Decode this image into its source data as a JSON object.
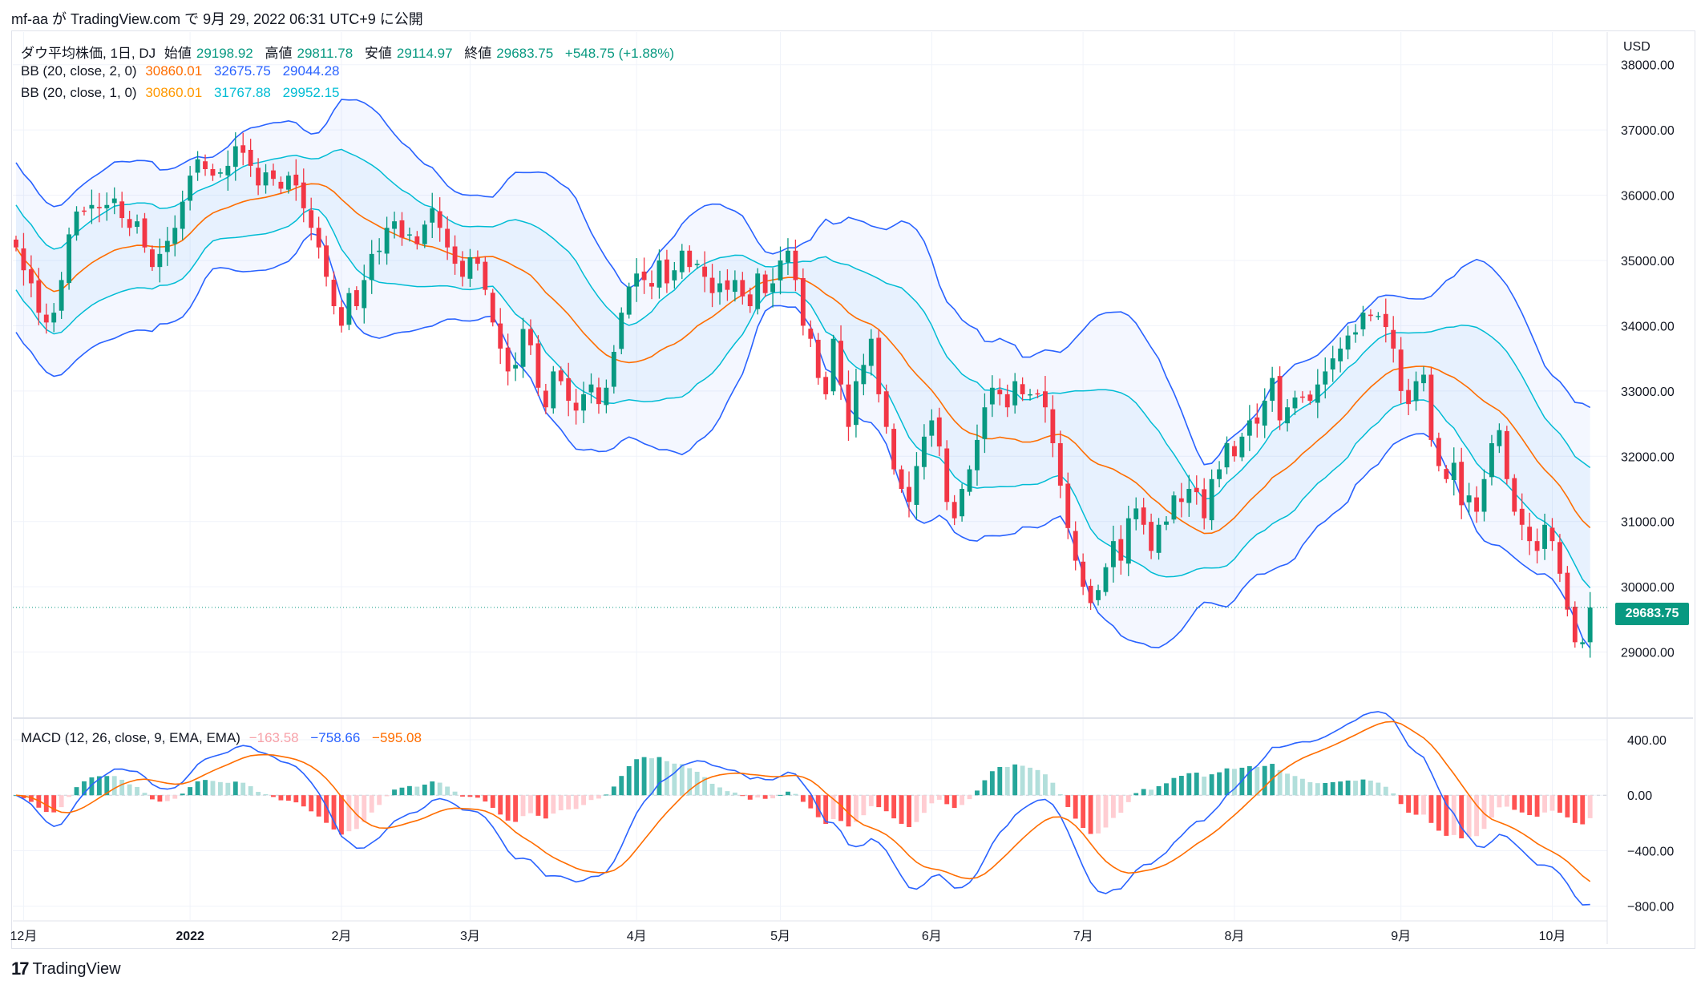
{
  "header": {
    "publish_line": "mf-aa が TradingView.com で 9月 29, 2022 06:31 UTC+9 に公開"
  },
  "legend": {
    "symbol": "ダウ平均株価, 1日, DJ",
    "open_label": "始値",
    "open": "29198.92",
    "high_label": "高値",
    "high": "29811.78",
    "low_label": "安値",
    "low": "29114.97",
    "close_label": "終値",
    "close": "29683.75",
    "change": "+548.75 (+1.88%)",
    "bb1_label": "BB (20, close, 2, 0)",
    "bb1_basis": "30860.01",
    "bb1_upper": "32675.75",
    "bb1_lower": "29044.28",
    "bb2_label": "BB (20, close, 1, 0)",
    "bb2_basis": "30860.01",
    "bb2_upper": "31767.88",
    "bb2_lower": "29952.15",
    "macd_label": "MACD (12, 26, close, 9, EMA, EMA)",
    "macd_hist": "−163.58",
    "macd_line": "−758.66",
    "macd_signal": "−595.08"
  },
  "currency": "USD",
  "last_price_tag": "29683.75",
  "brand": "TradingView",
  "colors": {
    "up": "#089981",
    "down": "#f23645",
    "bb_outer": "#2962ff",
    "bb_inner": "#00bcd4",
    "bb_basis": "#ff6d00",
    "hist_up_strong": "#26a69a",
    "hist_up_weak": "#b2dfdb",
    "hist_down_strong": "#ff5252",
    "hist_down_weak": "#ffcdd2",
    "macd_line": "#2962ff",
    "signal_line": "#ff6d00"
  },
  "chart_data": [
    {
      "type": "candlestick",
      "title": "ダウ平均株価, 1日, DJ",
      "y_unit": "USD",
      "ylim": [
        28000,
        38500
      ],
      "yticks": [
        29000,
        30000,
        31000,
        32000,
        33000,
        34000,
        35000,
        36000,
        37000,
        38000
      ],
      "ytick_labels": [
        "29000.00",
        "30000.00",
        "31000.00",
        "32000.00",
        "33000.00",
        "34000.00",
        "35000.00",
        "36000.00",
        "37000.00",
        "38000.00"
      ],
      "xticks": [
        {
          "label": "12月",
          "t": 1
        },
        {
          "label": "2022",
          "t": 23,
          "bold": true
        },
        {
          "label": "2月",
          "t": 43
        },
        {
          "label": "3月",
          "t": 60
        },
        {
          "label": "4月",
          "t": 82
        },
        {
          "label": "5月",
          "t": 101
        },
        {
          "label": "6月",
          "t": 121
        },
        {
          "label": "7月",
          "t": 141
        },
        {
          "label": "8月",
          "t": 161
        },
        {
          "label": "9月",
          "t": 183
        },
        {
          "label": "10月",
          "t": 203
        }
      ],
      "x_range": [
        0,
        211
      ],
      "closes": [
        35200,
        34850,
        34650,
        34200,
        34050,
        34200,
        34700,
        35400,
        35750,
        35750,
        35850,
        35800,
        35850,
        35950,
        35650,
        35500,
        35600,
        35200,
        34900,
        35100,
        35300,
        35500,
        35900,
        36300,
        36550,
        36400,
        36300,
        36350,
        36450,
        36750,
        36650,
        36450,
        36150,
        36350,
        36250,
        36100,
        36300,
        36150,
        35800,
        35500,
        35200,
        34750,
        34300,
        34000,
        34500,
        34300,
        34700,
        35100,
        35150,
        35500,
        35600,
        35350,
        35400,
        35250,
        35550,
        35800,
        35500,
        35200,
        34950,
        34750,
        35050,
        34950,
        34550,
        34050,
        33650,
        33300,
        33400,
        33950,
        33700,
        33050,
        32750,
        33300,
        33150,
        32850,
        32700,
        32950,
        33100,
        32800,
        33050,
        33600,
        34200,
        34600,
        34800,
        34700,
        34600,
        35000,
        34650,
        34850,
        35150,
        34900,
        34950,
        34750,
        34500,
        34650,
        34550,
        34700,
        34450,
        34300,
        34800,
        34500,
        34650,
        35000,
        35150,
        34700,
        34000,
        33800,
        33200,
        32950,
        33800,
        33100,
        32450,
        33150,
        33400,
        33800,
        32950,
        32450,
        31800,
        31500,
        31300,
        31850,
        32300,
        32550,
        32150,
        31300,
        31050,
        31500,
        31800,
        32250,
        32750,
        33050,
        32950,
        32750,
        33150,
        32950,
        32950,
        32950,
        32750,
        32200,
        31550,
        30900,
        30400,
        30000,
        29750,
        29950,
        30300,
        30700,
        30400,
        31050,
        31200,
        30950,
        30550,
        30950,
        31000,
        31400,
        31300,
        31500,
        31450,
        31050,
        31650,
        31800,
        32200,
        32000,
        32300,
        32550,
        32500,
        32850,
        33200,
        32550,
        32750,
        32900,
        32900,
        32850,
        33100,
        33300,
        33500,
        33650,
        33850,
        33900,
        34200,
        34150,
        34150,
        33980,
        33650,
        33000,
        32800,
        33150,
        33250,
        32250,
        31850,
        31650,
        31900,
        31250,
        31400,
        31150,
        31650,
        32200,
        32400,
        31650,
        31150,
        30950,
        30700,
        30550,
        30950,
        30700,
        30200,
        29650,
        29150,
        29150,
        29683
      ],
      "bollinger_2sd": {
        "basis_last": 30860.01,
        "upper_last": 32675.75,
        "lower_last": 29044.28
      },
      "bollinger_1sd": {
        "basis_last": 30860.01,
        "upper_last": 31767.88,
        "lower_last": 29952.15
      },
      "last_close": 29683.75
    },
    {
      "type": "macd",
      "title": "MACD (12, 26, close, 9, EMA, EMA)",
      "ylim": [
        -900,
        550
      ],
      "yticks": [
        400,
        0,
        -400,
        -800
      ],
      "ytick_labels": [
        "400.00",
        "0.00",
        "−400.00",
        "−800.00"
      ],
      "last": {
        "histogram": -163.58,
        "macd": -758.66,
        "signal": -595.08
      }
    }
  ]
}
